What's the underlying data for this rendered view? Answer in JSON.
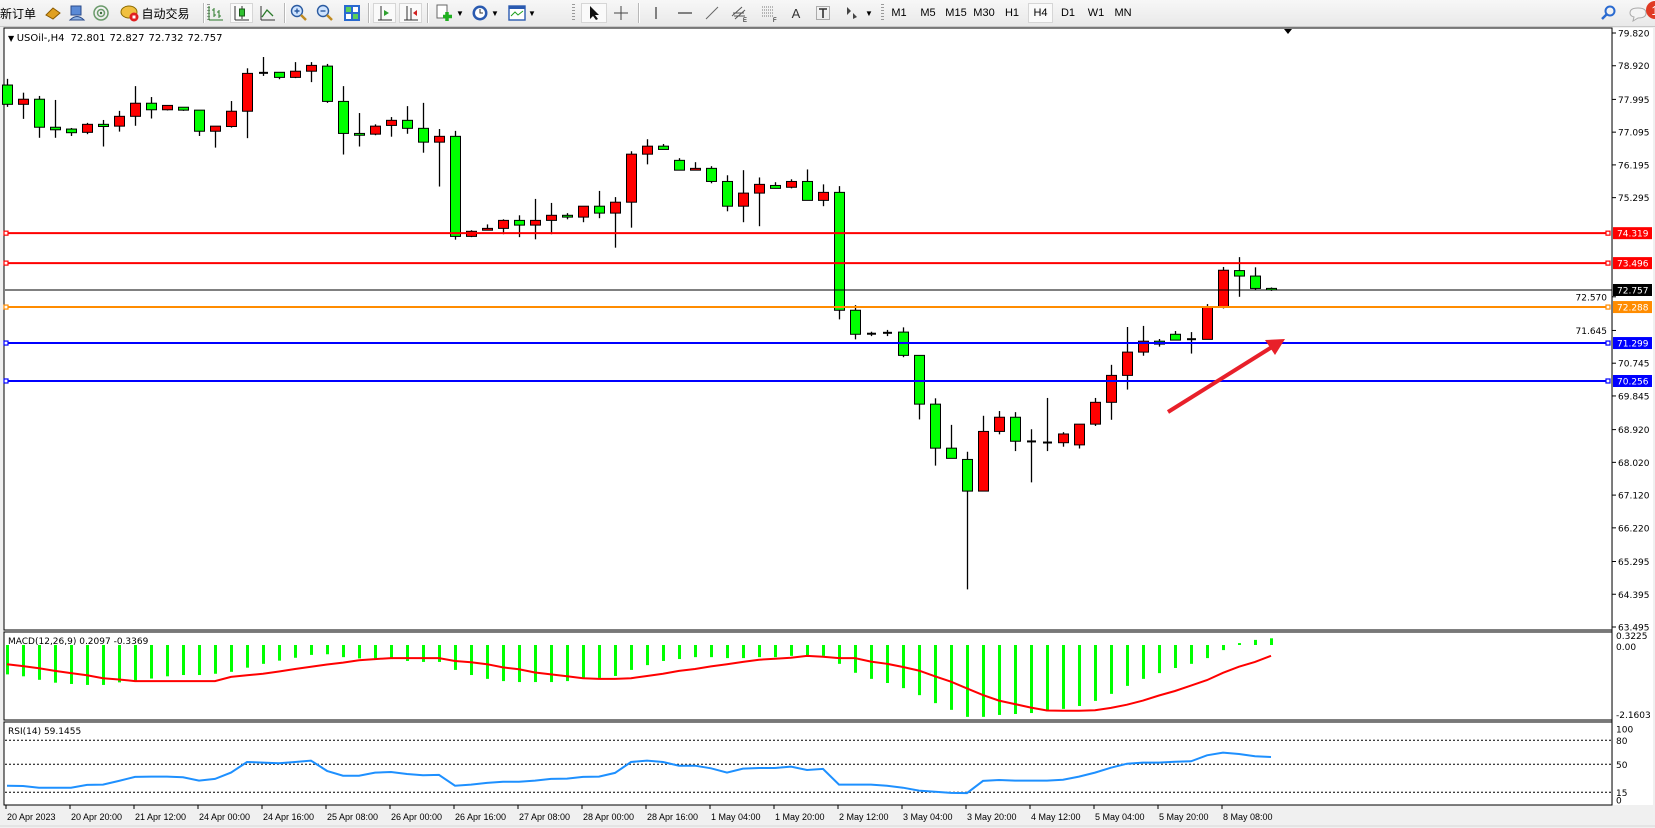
{
  "toolbar": {
    "new_order": "新订单",
    "auto_trading": "自动交易",
    "timeframes": [
      "M1",
      "M5",
      "M15",
      "M30",
      "H1",
      "H4",
      "D1",
      "W1",
      "MN"
    ],
    "active_timeframe": "H4",
    "notification_count": "1",
    "icons": [
      "market-watch-icon",
      "navigator-icon",
      "signals-icon",
      "auto-trading-icon",
      "bar-chart-icon",
      "candlestick-icon",
      "line-chart-icon",
      "zoom-in-icon",
      "zoom-out-icon",
      "tile-windows-icon",
      "auto-scroll-icon",
      "chart-shift-icon",
      "new-chart-icon",
      "periods-icon",
      "templates-icon",
      "cursor-icon",
      "crosshair-icon",
      "vertical-line-icon",
      "horizontal-line-icon",
      "trendline-icon",
      "equidistant-channel-icon",
      "fibonacci-icon",
      "text-icon",
      "text-label-icon",
      "arrows-icon",
      "search-icon",
      "notifications-icon"
    ]
  },
  "chart_header": {
    "symbol_timeframe": "USOil-,H4",
    "open": "72.801",
    "high": "72.827",
    "low": "72.732",
    "close": "72.757"
  },
  "chart_data": {
    "type": "candlestick",
    "colors": {
      "up": "#ff0000",
      "down": "#00ff00",
      "outline": "#000000",
      "background": "#ffffff"
    },
    "candle_fields": [
      "open",
      "high",
      "low",
      "close"
    ],
    "candles": [
      [
        78.39,
        78.56,
        77.79,
        77.86
      ],
      [
        77.86,
        78.18,
        77.46,
        78.0
      ],
      [
        78.0,
        78.09,
        76.94,
        77.23
      ],
      [
        77.23,
        77.98,
        76.94,
        77.16
      ],
      [
        77.18,
        77.21,
        76.99,
        77.08
      ],
      [
        77.09,
        77.35,
        77.04,
        77.31
      ],
      [
        77.31,
        77.43,
        76.7,
        77.25
      ],
      [
        77.26,
        77.68,
        77.11,
        77.53
      ],
      [
        77.53,
        78.36,
        77.27,
        77.89
      ],
      [
        77.89,
        78.06,
        77.47,
        77.71
      ],
      [
        77.71,
        77.83,
        77.69,
        77.83
      ],
      [
        77.78,
        77.78,
        77.68,
        77.7
      ],
      [
        77.7,
        77.7,
        76.99,
        77.12
      ],
      [
        77.12,
        77.26,
        76.67,
        77.26
      ],
      [
        77.25,
        77.95,
        77.22,
        77.67
      ],
      [
        77.67,
        78.85,
        76.93,
        78.71
      ],
      [
        78.72,
        79.16,
        78.64,
        78.73
      ],
      [
        78.74,
        78.74,
        78.55,
        78.6
      ],
      [
        78.6,
        79.02,
        78.58,
        78.77
      ],
      [
        78.77,
        79.02,
        78.47,
        78.93
      ],
      [
        78.91,
        78.97,
        77.9,
        77.94
      ],
      [
        77.94,
        78.36,
        76.48,
        77.06
      ],
      [
        77.06,
        77.62,
        76.7,
        77.01
      ],
      [
        77.04,
        77.31,
        77.01,
        77.26
      ],
      [
        77.28,
        77.51,
        76.97,
        77.42
      ],
      [
        77.42,
        77.81,
        77.05,
        77.2
      ],
      [
        77.2,
        77.9,
        76.53,
        76.82
      ],
      [
        76.82,
        77.18,
        75.6,
        76.98
      ],
      [
        76.98,
        77.13,
        74.14,
        74.23
      ],
      [
        74.23,
        74.4,
        74.21,
        74.37
      ],
      [
        74.4,
        74.56,
        74.4,
        74.45
      ],
      [
        74.45,
        74.7,
        74.29,
        74.67
      ],
      [
        74.67,
        74.81,
        74.21,
        74.54
      ],
      [
        74.54,
        75.26,
        74.15,
        74.67
      ],
      [
        74.67,
        75.15,
        74.29,
        74.81
      ],
      [
        74.81,
        74.87,
        74.7,
        74.76
      ],
      [
        74.76,
        75.06,
        74.62,
        75.06
      ],
      [
        75.06,
        75.48,
        74.73,
        74.87
      ],
      [
        74.87,
        75.31,
        73.92,
        75.17
      ],
      [
        75.17,
        76.57,
        74.47,
        76.49
      ],
      [
        76.49,
        76.9,
        76.21,
        76.71
      ],
      [
        76.71,
        76.77,
        76.62,
        76.62
      ],
      [
        76.32,
        76.38,
        76.05,
        76.05
      ],
      [
        76.05,
        76.27,
        76.05,
        76.1
      ],
      [
        76.1,
        76.16,
        75.69,
        75.74
      ],
      [
        75.74,
        75.91,
        74.92,
        75.06
      ],
      [
        75.06,
        76.05,
        74.62,
        75.42
      ],
      [
        75.42,
        75.85,
        74.51,
        75.66
      ],
      [
        75.63,
        75.72,
        75.55,
        75.55
      ],
      [
        75.58,
        75.8,
        75.55,
        75.74
      ],
      [
        75.74,
        76.07,
        75.22,
        75.22
      ],
      [
        75.22,
        75.66,
        75.06,
        75.44
      ],
      [
        75.44,
        75.61,
        71.95,
        72.2
      ],
      [
        72.2,
        72.34,
        71.4,
        71.54
      ],
      [
        71.56,
        71.61,
        71.49,
        71.55
      ],
      [
        71.58,
        71.66,
        71.49,
        71.58
      ],
      [
        71.6,
        71.73,
        70.91,
        70.96
      ],
      [
        70.96,
        70.96,
        69.2,
        69.62
      ],
      [
        69.62,
        69.78,
        67.93,
        68.41
      ],
      [
        68.41,
        69.05,
        68.13,
        68.13
      ],
      [
        68.1,
        68.31,
        64.53,
        67.23
      ],
      [
        67.23,
        69.3,
        67.23,
        68.87
      ],
      [
        68.87,
        69.43,
        68.79,
        69.26
      ],
      [
        69.26,
        69.4,
        68.33,
        68.6
      ],
      [
        68.6,
        68.93,
        67.47,
        68.59
      ],
      [
        68.57,
        69.79,
        68.33,
        68.56
      ],
      [
        68.56,
        68.85,
        68.45,
        68.8
      ],
      [
        68.5,
        69.07,
        68.4,
        69.07
      ],
      [
        69.07,
        69.79,
        69.02,
        69.67
      ],
      [
        69.67,
        70.7,
        69.19,
        70.41
      ],
      [
        70.41,
        71.74,
        70.02,
        71.05
      ],
      [
        71.05,
        71.77,
        70.95,
        71.35
      ],
      [
        71.35,
        71.41,
        71.2,
        71.27
      ],
      [
        71.54,
        71.63,
        71.38,
        71.38
      ],
      [
        71.41,
        71.6,
        71.01,
        71.4
      ],
      [
        71.4,
        72.37,
        71.4,
        72.28
      ],
      [
        72.28,
        73.39,
        72.25,
        73.3
      ],
      [
        73.29,
        73.66,
        72.57,
        73.14
      ],
      [
        73.14,
        73.38,
        72.76,
        72.8
      ],
      [
        72.801,
        72.827,
        72.732,
        72.757
      ]
    ],
    "x_labels": [
      "20 Apr 2023",
      "20 Apr 20:00",
      "21 Apr 12:00",
      "24 Apr 00:00",
      "24 Apr 16:00",
      "25 Apr 08:00",
      "26 Apr 00:00",
      "26 Apr 16:00",
      "27 Apr 08:00",
      "28 Apr 00:00",
      "28 Apr 16:00",
      "1 May 04:00",
      "1 May 20:00",
      "2 May 12:00",
      "3 May 04:00",
      "3 May 20:00",
      "4 May 12:00",
      "5 May 04:00",
      "5 May 20:00",
      "8 May 08:00"
    ],
    "price_axis": {
      "range": [
        63.495,
        79.82
      ],
      "ticks": [
        "79.820",
        "78.920",
        "77.995",
        "77.095",
        "76.195",
        "75.295",
        "72.570",
        "71.645",
        "70.745",
        "69.845",
        "68.920",
        "68.020",
        "67.120",
        "66.220",
        "65.295",
        "64.395",
        "63.495"
      ]
    },
    "current_price": {
      "value": "72.757",
      "color": "#000000"
    },
    "horizontal_lines": [
      {
        "value": "74.319",
        "color": "#ff0000"
      },
      {
        "value": "73.496",
        "color": "#ff0000"
      },
      {
        "value": "72.288",
        "color": "#ff8c00"
      },
      {
        "value": "71.299",
        "color": "#0000ff"
      },
      {
        "value": "70.256",
        "color": "#0000ff"
      }
    ],
    "annotation": {
      "type": "arrow",
      "color": "#e8202a",
      "direction": "up-right"
    },
    "macd": {
      "label": "MACD(12,26,9) 0.2097 -0.3369",
      "axis_labels": [
        "0.3225",
        "0.00",
        "-2.1603"
      ],
      "histogram_color": "#00ff00",
      "signal_color": "#ff0000",
      "histogram": [
        -0.92,
        -0.98,
        -1.09,
        -1.18,
        -1.22,
        -1.25,
        -1.25,
        -1.17,
        -1.13,
        -1.05,
        -0.98,
        -0.94,
        -0.94,
        -0.9,
        -0.84,
        -0.71,
        -0.59,
        -0.49,
        -0.4,
        -0.31,
        -0.29,
        -0.38,
        -0.42,
        -0.42,
        -0.44,
        -0.5,
        -0.53,
        -0.53,
        -0.78,
        -0.94,
        -1.06,
        -1.13,
        -1.16,
        -1.16,
        -1.16,
        -1.13,
        -1.03,
        -1.03,
        -0.97,
        -0.78,
        -0.63,
        -0.5,
        -0.44,
        -0.38,
        -0.38,
        -0.41,
        -0.41,
        -0.38,
        -0.38,
        -0.34,
        -0.34,
        -0.34,
        -0.59,
        -0.87,
        -1.06,
        -1.19,
        -1.35,
        -1.57,
        -1.82,
        -2.03,
        -2.25,
        -2.25,
        -2.19,
        -2.16,
        -2.13,
        -2.07,
        -2.0,
        -1.91,
        -1.75,
        -1.53,
        -1.28,
        -1.06,
        -0.88,
        -0.72,
        -0.59,
        -0.41,
        -0.16,
        0.06,
        0.16,
        0.2097
      ],
      "signal": [
        -0.6,
        -0.66,
        -0.73,
        -0.81,
        -0.88,
        -0.95,
        -1.04,
        -1.08,
        -1.13,
        -1.13,
        -1.13,
        -1.13,
        -1.13,
        -1.13,
        -1.0,
        -0.95,
        -0.9,
        -0.83,
        -0.75,
        -0.68,
        -0.61,
        -0.55,
        -0.48,
        -0.44,
        -0.41,
        -0.41,
        -0.41,
        -0.41,
        -0.5,
        -0.54,
        -0.6,
        -0.7,
        -0.76,
        -0.86,
        -0.92,
        -0.98,
        -1.04,
        -1.06,
        -1.06,
        -1.04,
        -0.97,
        -0.9,
        -0.81,
        -0.75,
        -0.67,
        -0.6,
        -0.53,
        -0.46,
        -0.43,
        -0.4,
        -0.34,
        -0.37,
        -0.41,
        -0.41,
        -0.52,
        -0.59,
        -0.69,
        -0.8,
        -0.98,
        -1.15,
        -1.36,
        -1.57,
        -1.74,
        -1.85,
        -1.96,
        -2.05,
        -2.06,
        -2.06,
        -2.04,
        -1.97,
        -1.87,
        -1.74,
        -1.58,
        -1.44,
        -1.27,
        -1.1,
        -0.87,
        -0.68,
        -0.53,
        -0.3369
      ]
    },
    "rsi": {
      "label": "RSI(14) 59.1455",
      "color": "#1e90ff",
      "levels": [
        "80",
        "50",
        "15"
      ],
      "axis_labels": [
        "100",
        "80",
        "50",
        "15",
        "0"
      ],
      "values": [
        23.3,
        22.9,
        20.8,
        20.8,
        20.8,
        24.2,
        24.6,
        29.2,
        34.2,
        34.6,
        34.6,
        33.8,
        29.6,
        31.7,
        39.6,
        52.9,
        52.1,
        51.3,
        52.9,
        54.6,
        41.7,
        35.8,
        35.8,
        39.6,
        40.4,
        37.9,
        36.3,
        36.7,
        23.3,
        24.6,
        26.7,
        28.3,
        28.3,
        29.6,
        31.7,
        32.1,
        34.2,
        34.6,
        39.2,
        52.9,
        54.6,
        52.9,
        48.3,
        48.3,
        45.0,
        39.6,
        44.6,
        45.4,
        45.4,
        47.1,
        42.9,
        44.2,
        24.6,
        24.6,
        24.6,
        23.3,
        20.8,
        17.1,
        15.8,
        14.2,
        14.0,
        29.2,
        30.4,
        29.6,
        29.6,
        29.6,
        30.8,
        34.6,
        39.6,
        45.8,
        50.8,
        52.1,
        52.1,
        53.3,
        53.8,
        61.3,
        64.6,
        62.9,
        60.0,
        59.1455
      ]
    }
  }
}
